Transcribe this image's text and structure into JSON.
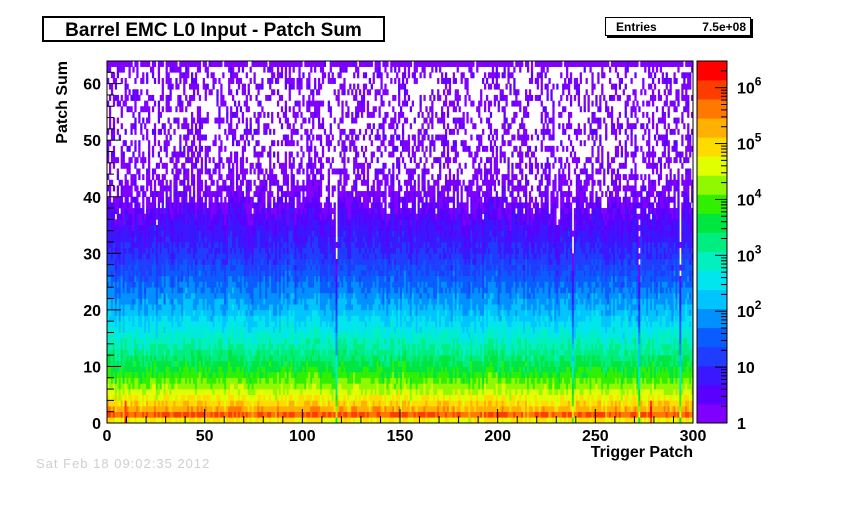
{
  "title": "Barrel EMC L0 Input - Patch Sum",
  "stats": {
    "entries_label": "Entries",
    "entries_value": "7.5e+08"
  },
  "timestamp": "Sat Feb 18 09:02:35 2012",
  "colors": {
    "palette": [
      "#7f00ff",
      "#5a00ff",
      "#3a17ff",
      "#1f3cff",
      "#0a5cff",
      "#0090ff",
      "#00c4ff",
      "#00e5ee",
      "#00f0c0",
      "#00ee80",
      "#00e640",
      "#30f000",
      "#90f800",
      "#e0ff00",
      "#ffdc00",
      "#ffb000",
      "#ff7800",
      "#ff3c00",
      "#ff0000"
    ]
  },
  "chart_data": {
    "type": "heatmap",
    "title": "Barrel EMC L0 Input - Patch Sum",
    "xlabel": "Trigger Patch",
    "ylabel": "Patch Sum",
    "xlim": [
      0,
      300
    ],
    "ylim": [
      0,
      64
    ],
    "x_ticks": [
      0,
      50,
      100,
      150,
      200,
      250,
      300
    ],
    "y_ticks": [
      0,
      10,
      20,
      30,
      40,
      50,
      60
    ],
    "z_scale": "log",
    "zlim": [
      1,
      3000000
    ],
    "z_ticks": [
      {
        "value": 1,
        "label": "1"
      },
      {
        "value": 10,
        "label": "10"
      },
      {
        "value": 100,
        "base": "10",
        "exp": "2"
      },
      {
        "value": 1000,
        "base": "10",
        "exp": "3"
      },
      {
        "value": 10000,
        "base": "10",
        "exp": "4"
      },
      {
        "value": 100000,
        "base": "10",
        "exp": "5"
      },
      {
        "value": 1000000,
        "base": "10",
        "exp": "6"
      }
    ],
    "entries": "7.5e+08",
    "profile": [
      {
        "y": 0,
        "z": 3000
      },
      {
        "y": 1,
        "z": 1500000
      },
      {
        "y": 2,
        "z": 300000
      },
      {
        "y": 4,
        "z": 80000
      },
      {
        "y": 6,
        "z": 25000
      },
      {
        "y": 9,
        "z": 6000
      },
      {
        "y": 12,
        "z": 2000
      },
      {
        "y": 16,
        "z": 500
      },
      {
        "y": 20,
        "z": 150
      },
      {
        "y": 25,
        "z": 40
      },
      {
        "y": 30,
        "z": 12
      },
      {
        "y": 35,
        "z": 5
      },
      {
        "y": 40,
        "z": 2.2
      },
      {
        "y": 45,
        "z": 1.4
      },
      {
        "y": 50,
        "z": 1.1
      },
      {
        "y": 63,
        "z": 1
      }
    ],
    "overflow_row": {
      "y": 63,
      "z": 1
    },
    "hot_columns": [
      9,
      278
    ],
    "hot_column_z": 1500000,
    "sparse_columns": [
      117,
      238,
      272,
      293
    ]
  }
}
